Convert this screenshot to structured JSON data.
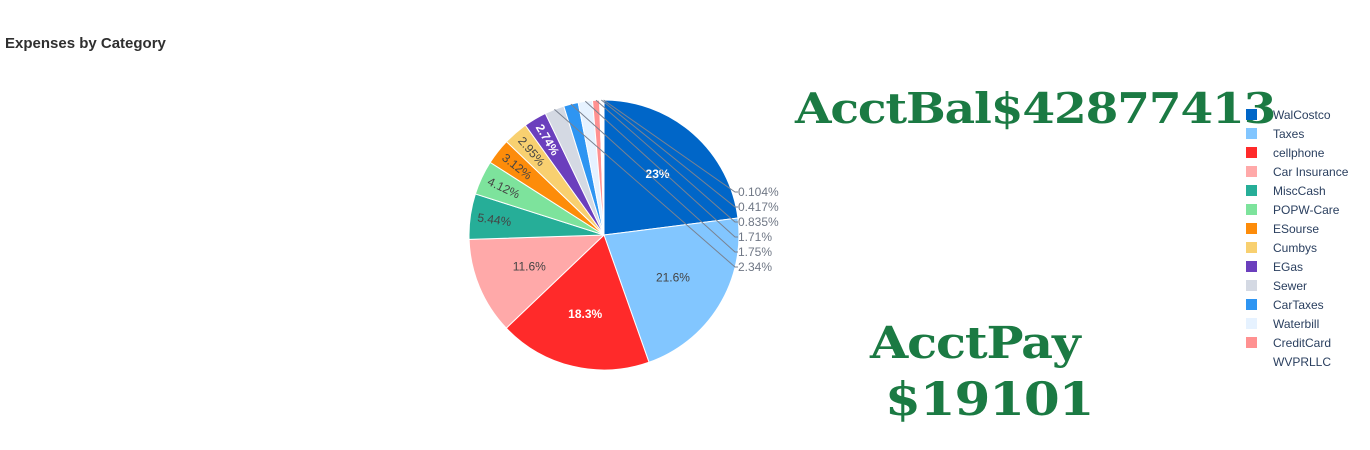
{
  "header": {
    "title": "Expenses by Category"
  },
  "summary": {
    "acct_bal": "AcctBal$42877413",
    "acct_pay_label": "AcctPay",
    "acct_pay_amount": "$19101",
    "text_color": "#1b7a43"
  },
  "chart_data": {
    "type": "pie",
    "title": "Expenses by Category",
    "legend_position": "right",
    "direction": "clockwise",
    "start_angle": "12 o'clock",
    "slices": [
      {
        "label": "WalCostco",
        "value": 23.0,
        "text": "23%",
        "color": "#0066c8"
      },
      {
        "label": "Taxes",
        "value": 21.6,
        "text": "21.6%",
        "color": "#82c6ff"
      },
      {
        "label": "cellphone",
        "value": 18.3,
        "text": "18.3%",
        "color": "#ff2a2a"
      },
      {
        "label": "Car Insurance",
        "value": 11.6,
        "text": "11.6%",
        "color": "#ffa9a9"
      },
      {
        "label": "MiscCash",
        "value": 5.44,
        "text": "5.44%",
        "color": "#26ae98"
      },
      {
        "label": "POPW-Care",
        "value": 4.12,
        "text": "4.12%",
        "color": "#7de39c"
      },
      {
        "label": "ESourse",
        "value": 3.12,
        "text": "3.12%",
        "color": "#fd8c0a"
      },
      {
        "label": "Cumbys",
        "value": 2.95,
        "text": "2.95%",
        "color": "#f8d070"
      },
      {
        "label": "EGas",
        "value": 2.74,
        "text": "2.74%",
        "color": "#6b3fbd"
      },
      {
        "label": "Sewer",
        "value": 2.34,
        "text": "2.34%",
        "color": "#d4d9e3"
      },
      {
        "label": "CarTaxes",
        "value": 1.75,
        "text": "1.75%",
        "color": "#2e95f2"
      },
      {
        "label": "Waterbill",
        "value": 1.71,
        "text": "1.71%",
        "color": "#e6f2ff"
      },
      {
        "label": "CreditCard",
        "value": 0.835,
        "text": "0.835%",
        "color": "#ff9191"
      },
      {
        "label": "WVPRLLC",
        "value": 0.417,
        "text": "0.417%",
        "color": "#ffffff"
      },
      {
        "label": "",
        "value": 0.104,
        "text": "0.104%",
        "color": "#0066c8"
      }
    ]
  }
}
